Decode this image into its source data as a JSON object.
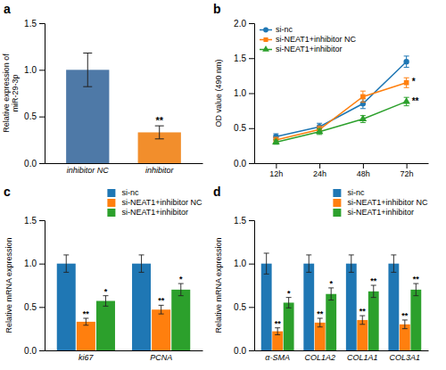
{
  "chart_data": [
    {
      "type": "bar",
      "title": "a",
      "categories": [
        "inhibitor NC",
        "inhibitor"
      ],
      "values": [
        1.0,
        0.33
      ],
      "errors": [
        0.18,
        0.07
      ],
      "ylabel": "Relative expression of\nmiR-29-3p",
      "ylim": [
        0,
        1.5
      ],
      "yticks": [
        {
          "value": 0.0,
          "label": "0.0"
        },
        0.5,
        {
          "value": 1.0,
          "label": "1.0"
        },
        1.5
      ],
      "annotations": [
        {
          "category": "inhibitor",
          "text": "**"
        }
      ]
    },
    {
      "type": "line",
      "title": "b",
      "categories": [
        "12h",
        "24h",
        "48h",
        "72h"
      ],
      "series": [
        {
          "name": "si-nc",
          "marker": "circle",
          "values": [
            0.38,
            0.52,
            0.85,
            1.45
          ],
          "errors": [
            0.04,
            0.05,
            0.07,
            0.08
          ]
        },
        {
          "name": "si-NEAT1+inhibitor NC",
          "marker": "square",
          "values": [
            0.33,
            0.48,
            0.95,
            1.15
          ],
          "errors": [
            0.04,
            0.05,
            0.08,
            0.07
          ]
        },
        {
          "name": "si-NEAT1+inhibitor",
          "marker": "triangle",
          "values": [
            0.3,
            0.45,
            0.63,
            0.88
          ],
          "errors": [
            0.03,
            0.04,
            0.05,
            0.06
          ]
        }
      ],
      "ylabel": "OD value (490 nm)",
      "ylim": [
        0,
        2.0
      ],
      "yticks": [
        {
          "value": 0.0,
          "label": "0.0"
        },
        0.5,
        {
          "value": 1.0,
          "label": "1.0"
        },
        1.5,
        {
          "value": 2.0,
          "label": "2.0"
        }
      ],
      "legend": "upper left",
      "annotations": [
        {
          "category": "72h",
          "series": "si-NEAT1+inhibitor NC",
          "text": "*"
        },
        {
          "category": "72h",
          "series": "si-NEAT1+inhibitor",
          "text": "**"
        }
      ]
    },
    {
      "type": "bar",
      "title": "c",
      "categories": [
        "ki67",
        "PCNA"
      ],
      "series": [
        {
          "name": "si-nc",
          "values": [
            1.0,
            1.0
          ],
          "errors": [
            0.1,
            0.1
          ]
        },
        {
          "name": "si-NEAT1+inhibitor NC",
          "values": [
            0.33,
            0.47
          ],
          "errors": [
            0.04,
            0.05
          ]
        },
        {
          "name": "si-NEAT1+inhibitor",
          "values": [
            0.57,
            0.7
          ],
          "errors": [
            0.06,
            0.07
          ]
        }
      ],
      "ylabel": "Relative mRNA expression",
      "ylim": [
        0,
        1.5
      ],
      "yticks": [
        {
          "value": 0.0,
          "label": "0.0"
        },
        0.5,
        {
          "value": 1.0,
          "label": "1.0"
        },
        1.5
      ],
      "legend": "upper right",
      "annotations": [
        {
          "category": "ki67",
          "series": "si-NEAT1+inhibitor NC",
          "text": "**"
        },
        {
          "category": "ki67",
          "series": "si-NEAT1+inhibitor",
          "text": "*"
        },
        {
          "category": "PCNA",
          "series": "si-NEAT1+inhibitor NC",
          "text": "**"
        },
        {
          "category": "PCNA",
          "series": "si-NEAT1+inhibitor",
          "text": "*"
        }
      ]
    },
    {
      "type": "bar",
      "title": "d",
      "categories": [
        "α-SMA",
        "COL1A2",
        "COL1A1",
        "COL3A1"
      ],
      "series": [
        {
          "name": "si-nc",
          "values": [
            1.0,
            1.0,
            1.0,
            1.0
          ],
          "errors": [
            0.12,
            0.1,
            0.1,
            0.1
          ]
        },
        {
          "name": "si-NEAT1+inhibitor NC",
          "values": [
            0.22,
            0.32,
            0.35,
            0.3
          ],
          "errors": [
            0.04,
            0.05,
            0.05,
            0.05
          ]
        },
        {
          "name": "si-NEAT1+inhibitor",
          "values": [
            0.55,
            0.65,
            0.68,
            0.7
          ],
          "errors": [
            0.06,
            0.07,
            0.07,
            0.07
          ]
        }
      ],
      "ylabel": "Relative mRNA expression",
      "ylim": [
        0,
        1.5
      ],
      "yticks": [
        {
          "value": 0.0,
          "label": "0.0"
        },
        0.5,
        {
          "value": 1.0,
          "label": "1.0"
        },
        1.5
      ],
      "legend": "upper right",
      "annotations": [
        {
          "category": "α-SMA",
          "series": "si-NEAT1+inhibitor NC",
          "text": "**"
        },
        {
          "category": "α-SMA",
          "series": "si-NEAT1+inhibitor",
          "text": "*"
        },
        {
          "category": "COL1A2",
          "series": "si-NEAT1+inhibitor NC",
          "text": "**"
        },
        {
          "category": "COL1A2",
          "series": "si-NEAT1+inhibitor",
          "text": "*"
        },
        {
          "category": "COL1A1",
          "series": "si-NEAT1+inhibitor NC",
          "text": "**"
        },
        {
          "category": "COL1A1",
          "series": "si-NEAT1+inhibitor",
          "text": "**"
        },
        {
          "category": "COL3A1",
          "series": "si-NEAT1+inhibitor NC",
          "text": "**"
        },
        {
          "category": "COL3A1",
          "series": "si-NEAT1+inhibitor",
          "text": "**"
        }
      ]
    }
  ]
}
